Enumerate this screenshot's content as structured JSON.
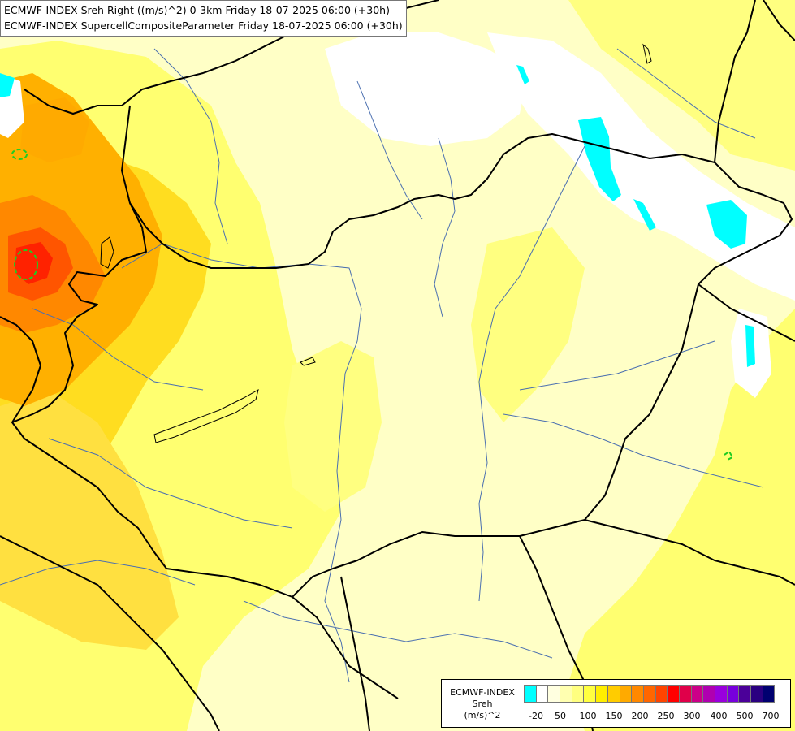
{
  "header": {
    "line1": "ECMWF-INDEX Sreh Right ((m/s)^2) 0-3km Friday 18-07-2025 06:00 (+30h)",
    "line2": "ECMWF-INDEX SupercellCompositeParameter Friday 18-07-2025 06:00 (+30h)"
  },
  "legend": {
    "line1": "ECMWF-INDEX",
    "line2": "Sreh",
    "line3": "(m/s)^2",
    "colors": [
      "#00ffff",
      "#ffffff",
      "#ffffe0",
      "#ffffb0",
      "#ffff80",
      "#ffff40",
      "#ffee00",
      "#ffcc00",
      "#ffaa00",
      "#ff8800",
      "#ff6600",
      "#ff4400",
      "#ff0000",
      "#e0004a",
      "#cc0088",
      "#b000b0",
      "#9900dd",
      "#7700dd",
      "#4b0099",
      "#2a0080",
      "#000070"
    ],
    "labels": [
      "-20",
      "50",
      "100",
      "150",
      "200",
      "250",
      "300",
      "400",
      "500",
      "700"
    ]
  },
  "colors": {
    "background": "#ffffc6",
    "border": "#000000",
    "river": "#4a6fb0",
    "scp_contour": "#22cc22"
  }
}
